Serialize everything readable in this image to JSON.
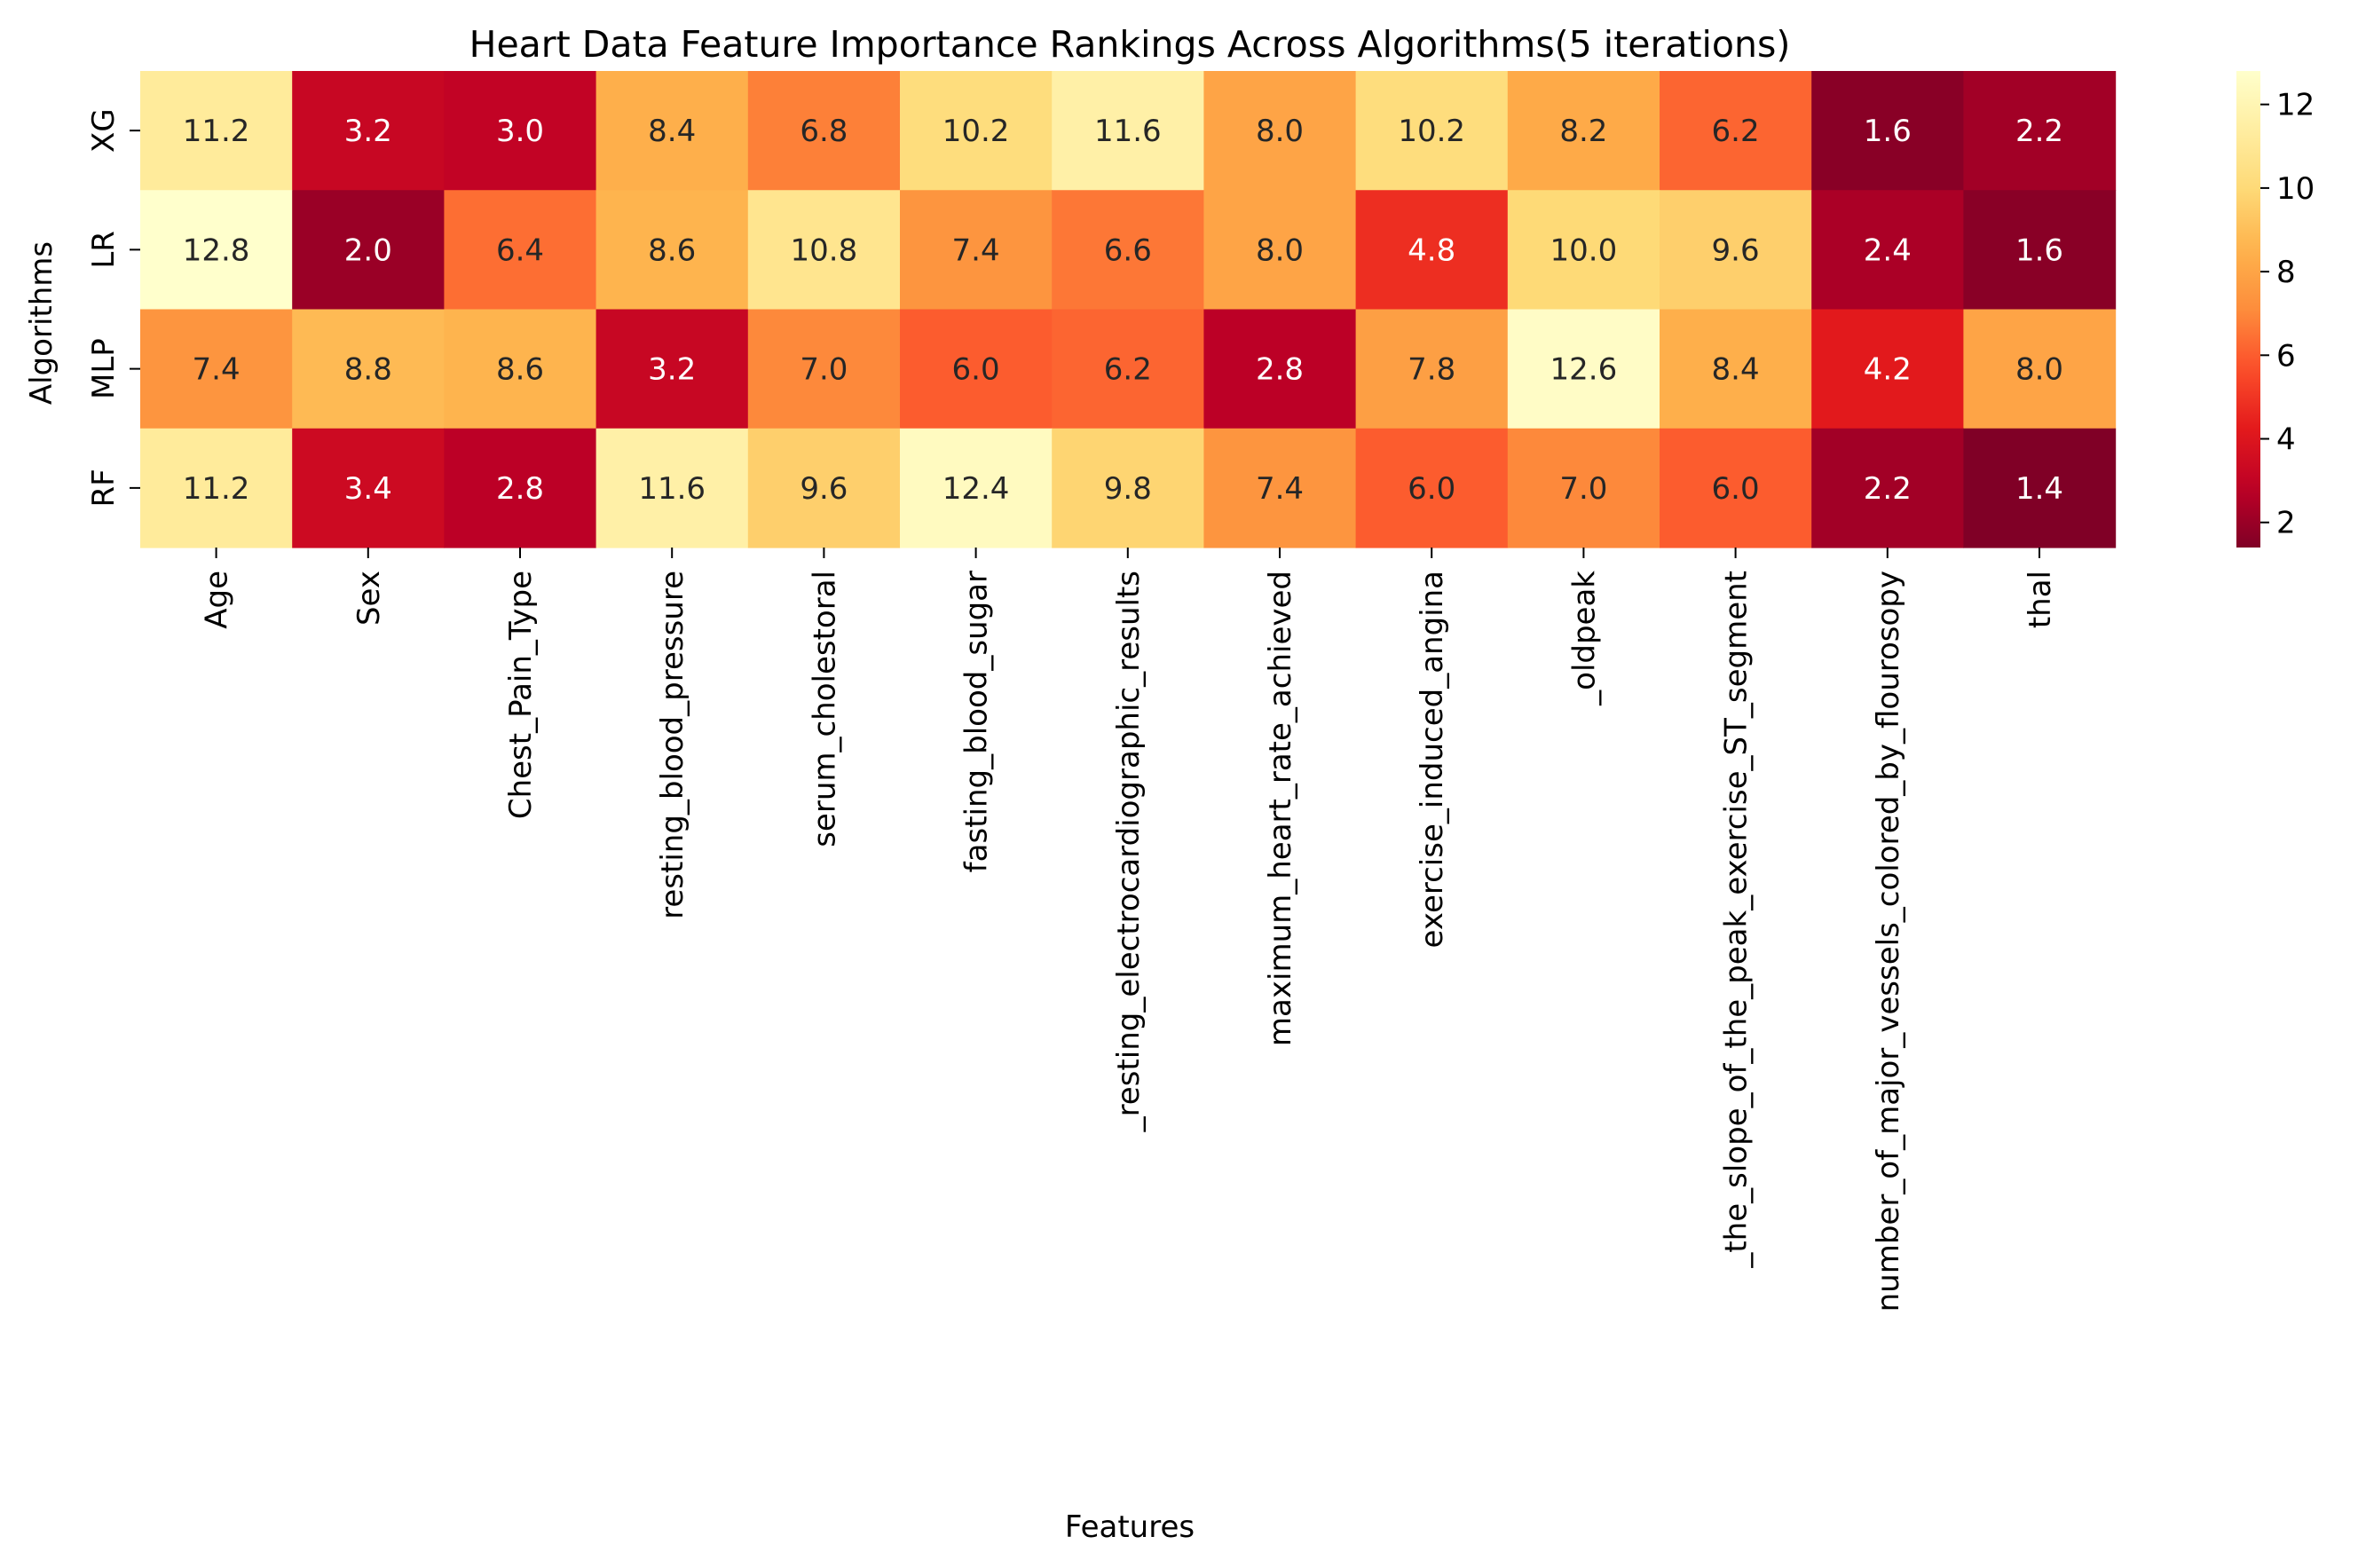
{
  "chart_data": {
    "type": "heatmap",
    "title": "Heart Data Feature Importance Rankings Across Algorithms(5 iterations)",
    "xlabel": "Features",
    "ylabel": "Algorithms",
    "rows": [
      "XG",
      "LR",
      "MLP",
      "RF"
    ],
    "columns": [
      "Age",
      "Sex",
      "Chest_Pain_Type",
      "resting_blood_pressure",
      "serum_cholestoral",
      "fasting_blood_sugar",
      "_resting_electrocardiographic_results",
      "maximum_heart_rate_achieved",
      "exercise_induced_angina",
      "_oldpeak",
      "_the_slope_of_the_peak_exercise_ST_segment",
      "number_of_major_vessels_colored_by_flourosopy",
      "thal"
    ],
    "values": [
      [
        11.2,
        3.2,
        3.0,
        8.4,
        6.8,
        10.2,
        11.6,
        8.0,
        10.2,
        8.2,
        6.2,
        1.6,
        2.2
      ],
      [
        12.8,
        2.0,
        6.4,
        8.6,
        10.8,
        7.4,
        6.6,
        8.0,
        4.8,
        10.0,
        9.6,
        2.4,
        1.6
      ],
      [
        7.4,
        8.8,
        8.6,
        3.2,
        7.0,
        6.0,
        6.2,
        2.8,
        7.8,
        12.6,
        8.4,
        4.2,
        8.0
      ],
      [
        11.2,
        3.4,
        2.8,
        11.6,
        9.6,
        12.4,
        9.8,
        7.4,
        6.0,
        7.0,
        6.0,
        2.2,
        1.4
      ]
    ],
    "colormap": "YlOrRd_r",
    "vmin": 1.4,
    "vmax": 12.8,
    "colorbar_ticks": [
      2,
      4,
      6,
      8,
      10,
      12
    ],
    "annotations": true,
    "grid": false
  }
}
